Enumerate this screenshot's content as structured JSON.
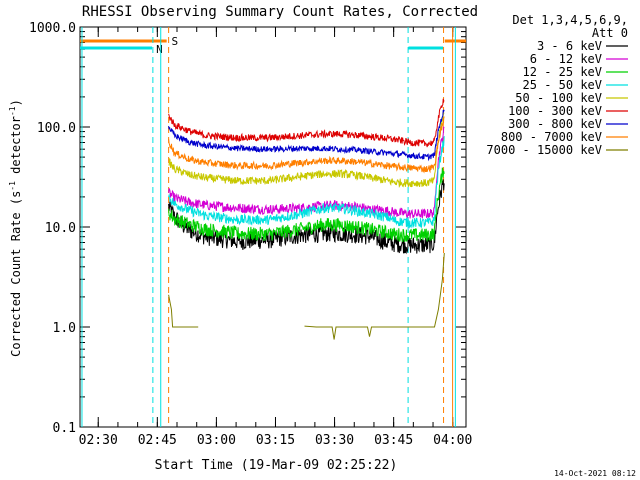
{
  "chart_data": {
    "type": "line",
    "title": "RHESSI Observing Summary Count Rates, Corrected",
    "xlabel": "Start Time (19-Mar-09 02:25:22)",
    "ylabel_main": "Corrected Count Rate (s",
    "ylabel_sup1": "-1",
    "ylabel_mid": " detector",
    "ylabel_sup2": "-1",
    "ylabel_end": ")",
    "yscale": "log",
    "xlim_minutes": [
      0,
      98
    ],
    "ylim": [
      0.1,
      1000
    ],
    "xticks": [
      {
        "label": "02:30",
        "minute": 4.63
      },
      {
        "label": "02:45",
        "minute": 19.63
      },
      {
        "label": "03:00",
        "minute": 34.63
      },
      {
        "label": "03:15",
        "minute": 49.63
      },
      {
        "label": "03:30",
        "minute": 64.63
      },
      {
        "label": "03:45",
        "minute": 79.63
      },
      {
        "label": "04:00",
        "minute": 94.63
      }
    ],
    "yticks": [
      {
        "label": "1000.0",
        "value": 1000
      },
      {
        "label": "100.0",
        "value": 100
      },
      {
        "label": "10.0",
        "value": 10
      },
      {
        "label": "1.0",
        "value": 1
      },
      {
        "label": "0.1",
        "value": 0.1
      }
    ],
    "legend_header": [
      "Det 1,3,4,5,6,9,",
      "Att 0"
    ],
    "series": [
      {
        "name": "3 - 6 keV",
        "color": "#000000",
        "noise": 0.09,
        "x": [
          22.5,
          24,
          26,
          28,
          32,
          40,
          48,
          56,
          64,
          70,
          74,
          78,
          80,
          84,
          88,
          90,
          92.5
        ],
        "y": [
          16,
          12.5,
          10.5,
          9.2,
          8,
          7.2,
          7.4,
          8.3,
          8.7,
          8.4,
          8,
          7,
          6.8,
          6.6,
          6.6,
          6.8,
          30
        ]
      },
      {
        "name": "6 - 12 keV",
        "color": "#d400d4",
        "noise": 0.05,
        "x": [
          22.5,
          24,
          28,
          32,
          40,
          48,
          56,
          64,
          70,
          74,
          78,
          80,
          84,
          88,
          90,
          92.5
        ],
        "y": [
          22,
          19.5,
          17.5,
          16.5,
          15.5,
          15,
          15.5,
          16.5,
          16,
          15,
          14.5,
          14,
          13.5,
          13.5,
          14,
          95
        ]
      },
      {
        "name": "12 - 25 keV",
        "color": "#00d000",
        "noise": 0.07,
        "x": [
          22.5,
          24,
          28,
          32,
          40,
          48,
          56,
          62,
          66,
          70,
          74,
          78,
          80,
          84,
          88,
          90,
          92.5
        ],
        "y": [
          14,
          12,
          10.5,
          9.5,
          8.6,
          8.5,
          9.5,
          10.6,
          10.5,
          10,
          9.4,
          8.8,
          8.4,
          8.3,
          8.3,
          8.6,
          40
        ]
      },
      {
        "name": "25 - 50 keV",
        "color": "#00e0e0",
        "noise": 0.05,
        "x": [
          22.5,
          24,
          28,
          32,
          40,
          48,
          56,
          62,
          66,
          70,
          74,
          78,
          80,
          84,
          88,
          90,
          92.5
        ],
        "y": [
          20,
          17,
          14.5,
          13,
          11.8,
          11.8,
          13.5,
          15.5,
          15.5,
          14.5,
          13.5,
          12.5,
          11.5,
          11,
          11,
          11.5,
          75
        ]
      },
      {
        "name": "50 - 100 keV",
        "color": "#c8c800",
        "noise": 0.04,
        "x": [
          22.5,
          24,
          28,
          32,
          40,
          48,
          56,
          62,
          66,
          70,
          74,
          78,
          80,
          84,
          88,
          90,
          92.5
        ],
        "y": [
          45,
          38,
          33,
          31,
          29,
          29,
          32,
          34,
          34,
          33,
          31,
          29,
          28,
          27.5,
          27.5,
          29,
          140
        ]
      },
      {
        "name": "100 - 300 keV",
        "color": "#dd0000",
        "noise": 0.035,
        "x": [
          22.5,
          24,
          28,
          32,
          40,
          48,
          56,
          62,
          66,
          70,
          74,
          78,
          80,
          84,
          88,
          90,
          92.5
        ],
        "y": [
          130,
          105,
          90,
          82,
          78,
          78,
          82,
          85,
          85,
          83,
          80,
          77,
          75,
          70,
          68,
          70,
          200
        ]
      },
      {
        "name": "300 - 800 keV",
        "color": "#0000cc",
        "noise": 0.03,
        "x": [
          22.5,
          24,
          28,
          32,
          40,
          48,
          56,
          62,
          66,
          70,
          74,
          78,
          80,
          84,
          88,
          90,
          92.5
        ],
        "y": [
          100,
          82,
          70,
          65,
          61,
          60,
          61,
          61,
          60,
          59,
          57,
          55,
          54,
          52,
          50,
          52,
          150
        ]
      },
      {
        "name": "800 - 7000 keV",
        "color": "#ff7f00",
        "noise": 0.035,
        "x": [
          22.5,
          24,
          28,
          32,
          40,
          48,
          56,
          62,
          66,
          70,
          74,
          78,
          80,
          84,
          88,
          90,
          92.5
        ],
        "y": [
          72,
          55,
          47,
          44,
          41,
          41,
          44,
          46,
          46,
          45,
          43,
          41,
          40,
          39,
          38,
          40,
          120
        ]
      },
      {
        "name": "7000 - 15000 keV",
        "color": "#7f7f00",
        "noise": 0,
        "x": [
          22.5,
          23.2,
          23.5,
          25,
          28,
          30,
          30.01,
          56,
          57,
          60,
          64,
          64.5,
          65,
          65.5,
          70,
          73,
          73.5,
          74,
          74.5,
          88,
          88.5,
          90,
          91,
          92,
          92.5
        ],
        "y": [
          2.1,
          1.5,
          1,
          1,
          1,
          1,
          0,
          0,
          1.02,
          1,
          1,
          0.75,
          1,
          1,
          1,
          1,
          0.8,
          1,
          1,
          1,
          1,
          1,
          1.5,
          3,
          5.5
        ]
      }
    ],
    "flags": [
      {
        "label": "S",
        "color": "#ff7f00"
      },
      {
        "label": "N",
        "color": "#00e0e0"
      }
    ],
    "saa_marks_minutes": [
      22.5,
      92.3
    ],
    "night_marks_minutes": [
      18.5,
      83.3
    ],
    "extra_marks": [
      {
        "minute": 0.5,
        "color": "#00e0e0"
      },
      {
        "minute": 20.5,
        "color": "#00e0e0"
      },
      {
        "minute": 95.3,
        "color": "#00e0e0"
      },
      {
        "minute": 94.6,
        "color": "#ff7f00"
      }
    ]
  },
  "footer_date": "14-Oct-2021 08:12"
}
